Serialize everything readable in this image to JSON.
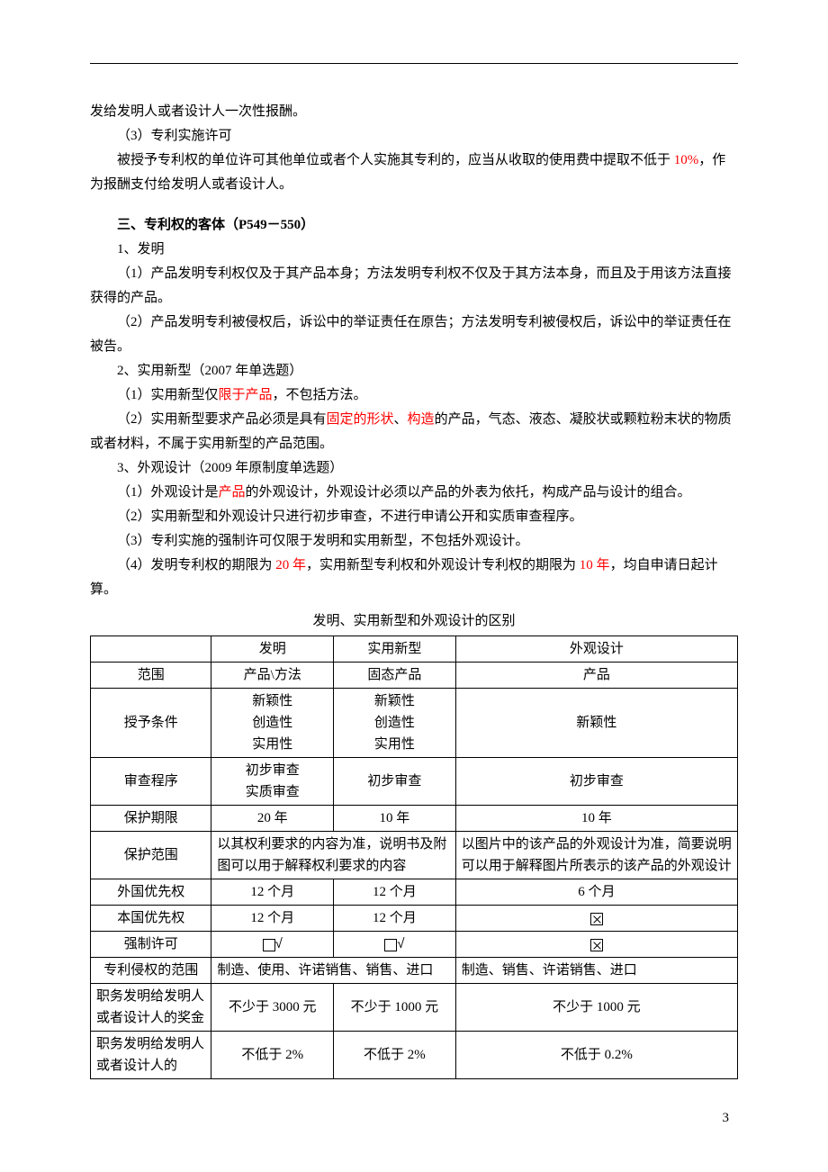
{
  "p1": "发给发明人或者设计人一次性报酬。",
  "p2": "（3）专利实施许可",
  "p3a": "被授予专利权的单位许可其他单位或者个人实施其专利的，应当从收取的使用费中提取不低于 ",
  "p3_red": "10%",
  "p3b": "，作为报酬支付给发明人或者设计人。",
  "h3": "三、专利权的客体（P549－550）",
  "p4": "1、发明",
  "p5": "（1）产品发明专利权仅及于其产品本身；方法发明专利权不仅及于其方法本身，而且及于用该方法直接获得的产品。",
  "p6": "（2）产品发明专利被侵权后，诉讼中的举证责任在原告；方法发明专利被侵权后，诉讼中的举证责任在被告。",
  "p7": "2、实用新型（2007 年单选题）",
  "p8a": "（1）实用新型仅",
  "p8_red": "限于产品",
  "p8b": "，不包括方法。",
  "p9a": "（2）实用新型要求产品必须是具有",
  "p9_red1": "固定的形状",
  "p9_mid": "、",
  "p9_red2": "构造",
  "p9b": "的产品，气态、液态、凝胶状或颗粒粉末状的物质或者材料，不属于实用新型的产品范围。",
  "p10": "3、外观设计（2009 年原制度单选题）",
  "p11a": "（1）外观设计是",
  "p11_red": "产品",
  "p11b": "的外观设计，外观设计必须以产品的外表为依托，构成产品与设计的组合。",
  "p12": "（2）实用新型和外观设计只进行初步审查，不进行申请公开和实质审查程序。",
  "p13": "（3）专利实施的强制许可仅限于发明和实用新型，不包括外观设计。",
  "p14a": "（4）发明专利权的期限为 ",
  "p14_red1": "20 年",
  "p14_mid": "，实用新型专利权和外观设计专利权的期限为 ",
  "p14_red2": "10 年",
  "p14b": "，均自申请日起计算。",
  "table_title": "发明、实用新型和外观设计的区别",
  "table": {
    "header": [
      "",
      "发明",
      "实用新型",
      "外观设计"
    ],
    "r_scope": [
      "范围",
      "产品\\方法",
      "固态产品",
      "产品"
    ],
    "r_cond_label": "授予条件",
    "r_cond_c1": "新颖性\n创造性\n实用性",
    "r_cond_c2": "新颖性\n创造性\n实用性",
    "r_cond_c3": "新颖性",
    "r_proc_label": "审查程序",
    "r_proc_c1": "初步审查\n实质审查",
    "r_proc_c2": "初步审查",
    "r_proc_c3": "初步审查",
    "r_term": [
      "保护期限",
      "20 年",
      "10 年",
      "10 年"
    ],
    "r_prot_label": "保护范围",
    "r_prot_c12": "以其权利要求的内容为准，说明书及附图可以用于解释权利要求的内容",
    "r_prot_c3": "以图片中的该产品的外观设计为准，简要说明可以用于解释图片所表示的该产品的外观设计",
    "r_foreign": [
      "外国优先权",
      "12 个月",
      "12 个月",
      "6 个月"
    ],
    "r_domestic": [
      "本国优先权",
      "12 个月",
      "12 个月",
      "×"
    ],
    "r_compulsory": [
      "强制许可",
      "√",
      "√",
      "×"
    ],
    "r_infringe_label": "专利侵权的范围",
    "r_infringe_c12": "制造、使用、许诺销售、销售、进口",
    "r_infringe_c3": "制造、销售、许诺销售、进口",
    "r_award_label": "职务发明给发明人或者设计人的奖金",
    "r_award_c1": "不少于 3000 元",
    "r_award_c2": "不少于 1000 元",
    "r_award_c3": "不少于 1000 元",
    "r_fee_label": "职务发明给发明人或者设计人的",
    "r_fee_c1": "不低于 2%",
    "r_fee_c2": "不低于 2%",
    "r_fee_c3": "不低于 0.2%"
  },
  "page_number": "3"
}
